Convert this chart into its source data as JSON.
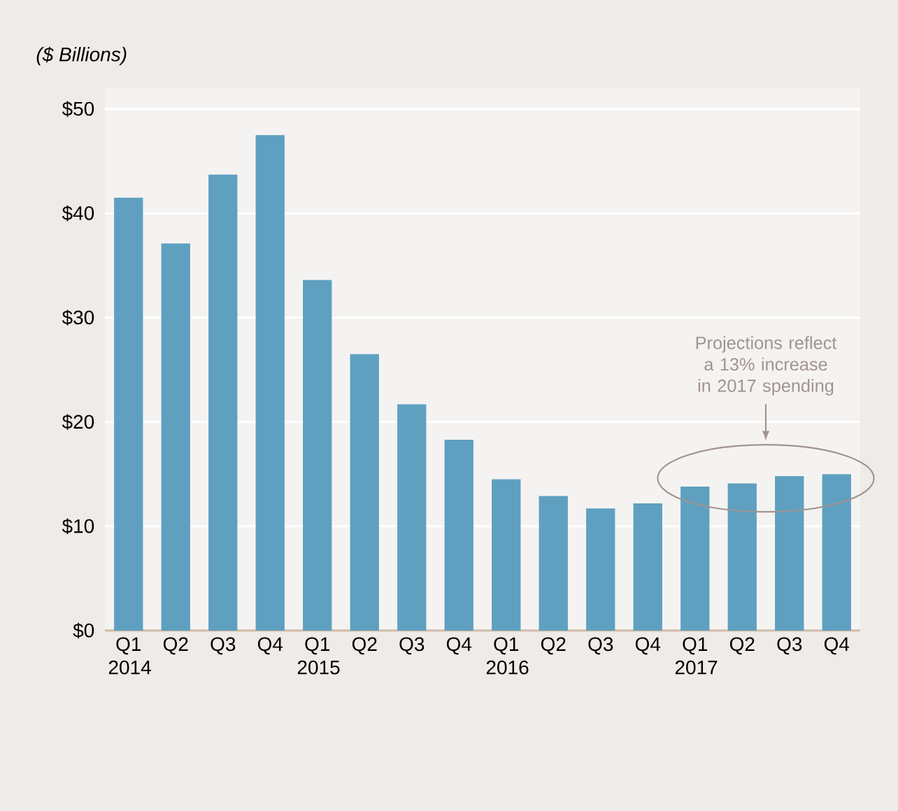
{
  "chart_data": {
    "type": "bar",
    "ylabel": "($ Billions)",
    "categories": [
      "Q1 2014",
      "Q2",
      "Q3",
      "Q4",
      "Q1 2015",
      "Q2",
      "Q3",
      "Q4",
      "Q1 2016",
      "Q2",
      "Q3",
      "Q4",
      "Q1 2017",
      "Q2",
      "Q3",
      "Q4"
    ],
    "values": [
      41.5,
      37.1,
      43.7,
      47.5,
      33.6,
      26.5,
      21.7,
      18.3,
      14.5,
      12.9,
      11.7,
      12.2,
      13.8,
      14.1,
      14.8,
      15.0
    ],
    "color": "#5fa0c0",
    "ylim": [
      0,
      52
    ],
    "yticks": [
      {
        "value": 0,
        "label": "$0"
      },
      {
        "value": 10,
        "label": "$10"
      },
      {
        "value": 20,
        "label": "$20"
      },
      {
        "value": 30,
        "label": "$30"
      },
      {
        "value": 40,
        "label": "$40"
      },
      {
        "value": 50,
        "label": "$50"
      }
    ],
    "grid": "y",
    "annotations": [
      "Projections reflect a 13% increase in 2017 spending"
    ]
  }
}
